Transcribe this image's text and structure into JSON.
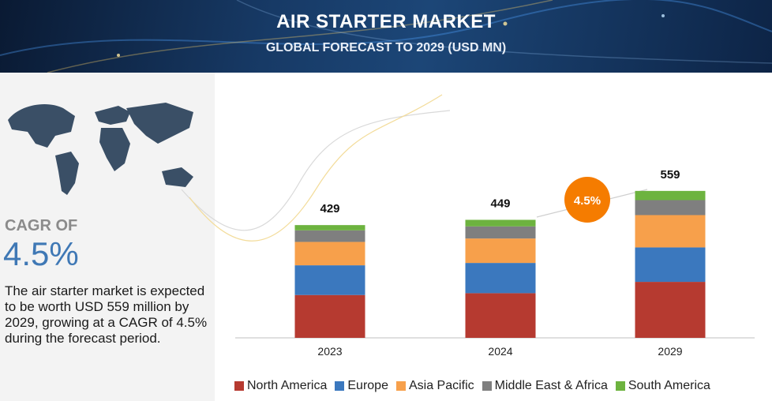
{
  "header": {
    "title": "AIR STARTER MARKET",
    "subtitle": "GLOBAL FORECAST TO 2029 (USD MN)"
  },
  "left_panel": {
    "cagr_label": "CAGR OF",
    "cagr_value": "4.5%",
    "description": "The air starter market is expected to be worth USD 559 million by 2029, growing at a CAGR of 4.5% during the forecast period."
  },
  "chart_data": {
    "type": "bar",
    "stacked": true,
    "categories": [
      "2023",
      "2024",
      "2029"
    ],
    "totals": [
      429,
      449,
      559
    ],
    "series": [
      {
        "name": "North America",
        "color": "#b63a30",
        "values": [
          163,
          170,
          213
        ]
      },
      {
        "name": "Europe",
        "color": "#3b78be",
        "values": [
          113,
          115,
          131
        ]
      },
      {
        "name": "Asia Pacific",
        "color": "#f7a04b",
        "values": [
          89,
          93,
          123
        ]
      },
      {
        "name": "Middle East & Africa",
        "color": "#7f7f7f",
        "values": [
          44,
          46,
          57
        ]
      },
      {
        "name": "South America",
        "color": "#6db33f",
        "values": [
          20,
          25,
          35
        ]
      }
    ],
    "annotation": {
      "text": "4.5%",
      "color": "#f57c00"
    },
    "grid": false,
    "legend_position": "bottom"
  }
}
